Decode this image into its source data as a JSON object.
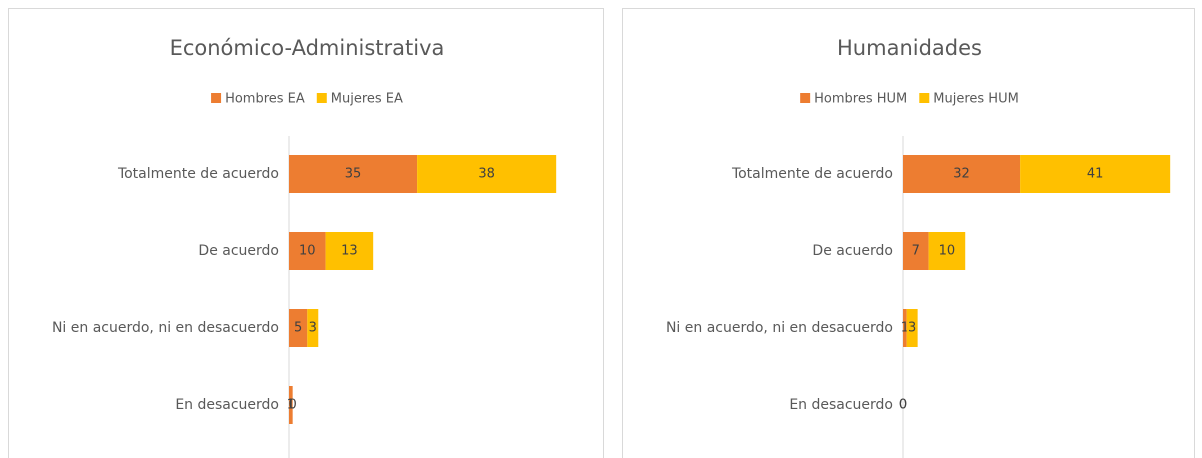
{
  "chart_data": [
    {
      "type": "stacked_bar",
      "title": "Económico-Administrativa",
      "categories": [
        "Totalmente de acuerdo",
        "De acuerdo",
        "Ni en acuerdo, ni en desacuerdo",
        "En desacuerdo"
      ],
      "series": [
        {
          "name": "Hombres EA",
          "color": "#ED7D31",
          "values": [
            35,
            10,
            5,
            1
          ]
        },
        {
          "name": "Mujeres EA",
          "color": "#FFC000",
          "values": [
            38,
            13,
            3,
            0
          ]
        }
      ]
    },
    {
      "type": "stacked_bar",
      "title": "Humanidades",
      "categories": [
        "Totalmente de acuerdo",
        "De acuerdo",
        "Ni en acuerdo, ni en desacuerdo",
        "En desacuerdo"
      ],
      "series": [
        {
          "name": "Hombres HUM",
          "color": "#ED7D31",
          "values": [
            32,
            7,
            1,
            0
          ]
        },
        {
          "name": "Mujeres HUM",
          "color": "#FFC000",
          "values": [
            41,
            10,
            3,
            0
          ]
        }
      ]
    }
  ]
}
